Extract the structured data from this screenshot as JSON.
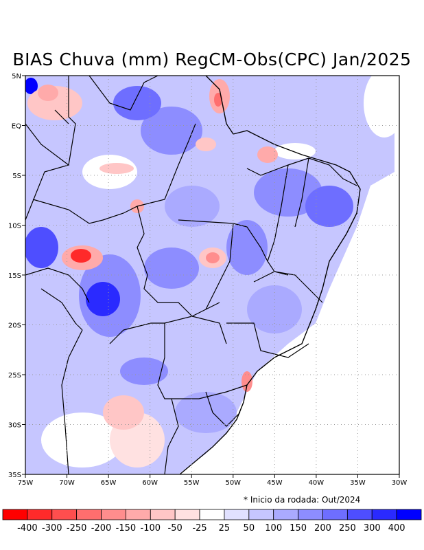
{
  "title": "BIAS Chuva (mm) RegCM-Obs(CPC) Jan/2025",
  "footnote": "* Inicio da rodada: Out/2024",
  "map": {
    "lon_range": [
      -75,
      -30
    ],
    "lat_range": [
      -35,
      5
    ],
    "grid": "dotted",
    "x_ticks": [
      "75W",
      "70W",
      "65W",
      "60W",
      "55W",
      "50W",
      "45W",
      "40W",
      "35W",
      "30W"
    ],
    "y_ticks": [
      "5N",
      "EQ",
      "5S",
      "10S",
      "15S",
      "20S",
      "25S",
      "30S",
      "35S"
    ]
  },
  "colorbar": {
    "labels": [
      "-400",
      "-300",
      "-250",
      "-200",
      "-150",
      "-100",
      "-50",
      "-25",
      "25",
      "50",
      "100",
      "150",
      "200",
      "250",
      "300",
      "400"
    ],
    "colors": [
      "#ff0000",
      "#ff2a2a",
      "#ff4e4e",
      "#ff6e6e",
      "#ff8d8d",
      "#ffaaaa",
      "#ffc6c6",
      "#ffe1e1",
      "#ffffff",
      "#e1e1ff",
      "#c6c6ff",
      "#aaaaff",
      "#8d8dff",
      "#6e6eff",
      "#4e4eff",
      "#2a2aff",
      "#0000ff"
    ]
  }
}
